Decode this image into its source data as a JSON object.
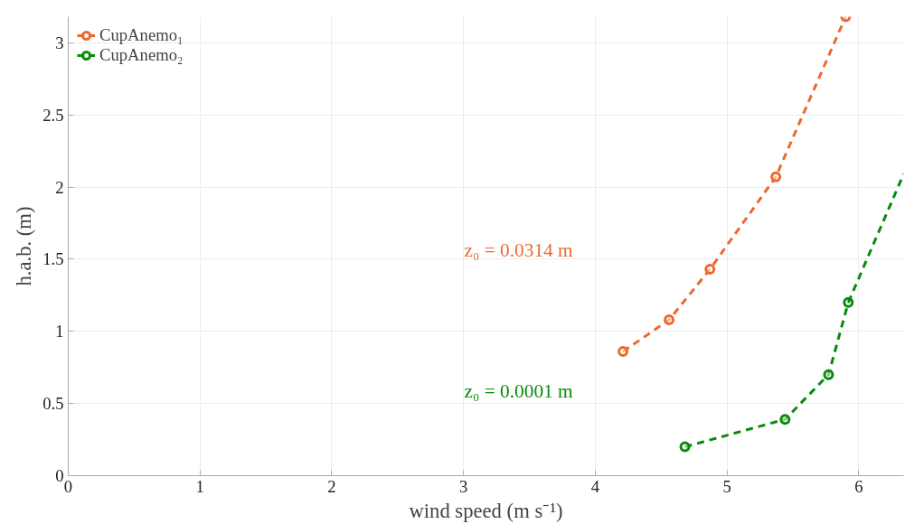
{
  "chart_data": {
    "type": "line",
    "xlabel": "wind speed (m s⁻¹)",
    "ylabel": "h.a.b. (m)",
    "xlim": [
      0,
      6.34
    ],
    "ylim": [
      0,
      3.18
    ],
    "xticks": [
      0,
      1,
      2,
      3,
      4,
      5,
      6
    ],
    "yticks": [
      0,
      0.5,
      1,
      1.5,
      2,
      2.5,
      3
    ],
    "grid": true,
    "legend": "top left",
    "marker": "circle",
    "line_style": "dashed",
    "series": [
      {
        "name": "CupAnemo₁",
        "color": "#ea6a2e",
        "x": [
          4.21,
          4.56,
          4.87,
          5.37,
          5.9
        ],
        "values": [
          0.86,
          1.08,
          1.43,
          2.07,
          3.18
        ]
      },
      {
        "name": "CupAnemo₂",
        "color": "#0a8a0a",
        "x": [
          4.68,
          5.44,
          5.77,
          5.92
        ],
        "values": [
          0.2,
          0.39,
          0.7,
          1.2
        ]
      },
      {
        "color": "#0a8a0a",
        "marker": "none",
        "x": [
          5.92,
          6.34
        ],
        "values": [
          1.2,
          2.09
        ]
      }
    ],
    "annotations": [
      "z₀ = 0.0314 m",
      "z₀ = 0.0001 m"
    ]
  }
}
